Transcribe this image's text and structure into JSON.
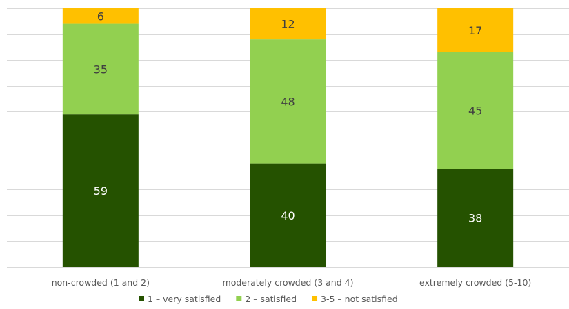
{
  "chart_data": {
    "type": "bar",
    "stacked": true,
    "percent_stacked": true,
    "categories": [
      "non-crowded (1 and 2)",
      "moderately crowded (3 and 4)",
      "extremely crowded (5-10)"
    ],
    "series": [
      {
        "name": "1 – very satisfied",
        "values": [
          59,
          40,
          38
        ],
        "color": "#255200",
        "label_color": "#ffffff"
      },
      {
        "name": "2 – satisfied",
        "values": [
          35,
          48,
          45
        ],
        "color": "#92d050",
        "label_color": "#404040"
      },
      {
        "name": "3-5 – not satisfied",
        "values": [
          6,
          12,
          17
        ],
        "color": "#ffc000",
        "label_color": "#404040"
      }
    ],
    "ylim": [
      0,
      100
    ],
    "grid": true,
    "legend_position": "bottom"
  }
}
